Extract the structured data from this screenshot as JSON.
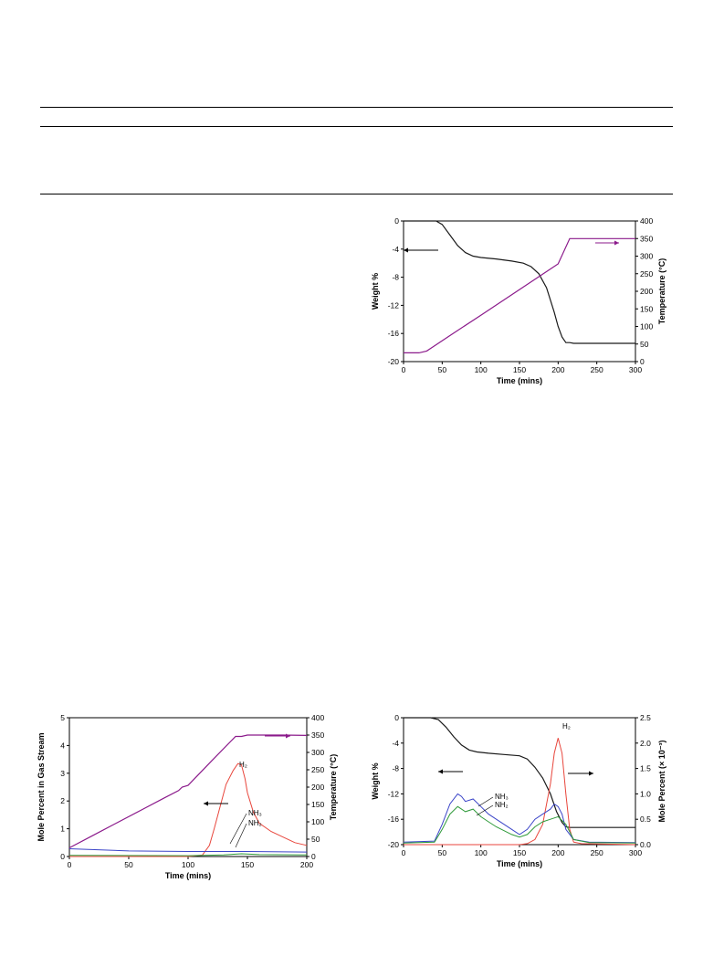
{
  "colors": {
    "weight": "#1a1a1a",
    "temperature": "#8b1a8b",
    "h2": "#e8463c",
    "nh3": "#3b45c8",
    "nh2": "#2f9a3a",
    "rule": "#000000"
  },
  "chart_data": [
    {
      "type": "line",
      "x_label": "Time (mins)",
      "y_label": "Weight %",
      "y2_label": "Temperature (°C)",
      "xlim": [
        0,
        300
      ],
      "ylim": [
        -20,
        0
      ],
      "y2lim": [
        0,
        400
      ],
      "x_ticks": [
        "0",
        "50",
        "100",
        "150",
        "200",
        "250",
        "300"
      ],
      "y_ticks": [
        "0",
        "-4",
        "-8",
        "-12",
        "-16",
        "-20"
      ],
      "y2_ticks": [
        "400",
        "350",
        "300",
        "250",
        "200",
        "150",
        "100",
        "50",
        "0"
      ],
      "series": [
        {
          "axis": "left",
          "color_key": "weight",
          "x": [
            0,
            30,
            42,
            50,
            60,
            70,
            80,
            90,
            100,
            120,
            140,
            155,
            165,
            175,
            185,
            195,
            200,
            205,
            210,
            215,
            220,
            300
          ],
          "y": [
            0,
            0,
            0,
            -0.5,
            -2.0,
            -3.5,
            -4.5,
            -5.0,
            -5.2,
            -5.4,
            -5.7,
            -6.0,
            -6.5,
            -7.5,
            -9.5,
            -13.0,
            -15.0,
            -16.5,
            -17.3,
            -17.3,
            -17.4,
            -17.4
          ]
        },
        {
          "axis": "right",
          "color_key": "temperature",
          "x": [
            0,
            20,
            30,
            40,
            60,
            100,
            150,
            200,
            215,
            220,
            300
          ],
          "y": [
            25,
            25,
            30,
            45,
            74,
            132,
            205,
            278,
            350,
            350,
            350
          ]
        }
      ]
    },
    {
      "type": "line",
      "x_label": "Time (mins)",
      "y_label": "Mole Percent in Gas Stream",
      "y2_label": "Temperature (°C)",
      "xlim": [
        0,
        200
      ],
      "ylim": [
        0,
        5
      ],
      "y2lim": [
        0,
        400
      ],
      "x_ticks": [
        "0",
        "50",
        "100",
        "150",
        "200"
      ],
      "y_ticks": [
        "5",
        "4",
        "3",
        "2",
        "1",
        "0"
      ],
      "y2_ticks": [
        "400",
        "350",
        "300",
        "250",
        "200",
        "150",
        "100",
        "50",
        "0"
      ],
      "annotations": {
        "h2": "H₂",
        "nh3": "NH₃",
        "nh2": "NH₂"
      },
      "series": [
        {
          "axis": "right",
          "color_key": "temperature",
          "x": [
            0,
            20,
            40,
            60,
            80,
            92,
            95,
            100,
            120,
            140,
            145,
            150,
            160,
            180,
            200
          ],
          "y": [
            25,
            61,
            97,
            133,
            169,
            190,
            200,
            205,
            276,
            346,
            346,
            350,
            350,
            350,
            349
          ]
        },
        {
          "axis": "left",
          "color_key": "h2",
          "x": [
            0,
            100,
            112,
            118,
            122,
            127,
            132,
            138,
            142,
            145,
            148,
            150,
            155,
            160,
            170,
            180,
            190,
            200
          ],
          "y": [
            0,
            0,
            0.05,
            0.4,
            1.0,
            1.8,
            2.6,
            3.1,
            3.35,
            3.3,
            2.8,
            2.3,
            1.6,
            1.2,
            0.9,
            0.7,
            0.5,
            0.4
          ]
        },
        {
          "axis": "left",
          "color_key": "nh3",
          "x": [
            0,
            50,
            100,
            150,
            200
          ],
          "y": [
            0.28,
            0.2,
            0.18,
            0.18,
            0.16
          ]
        },
        {
          "axis": "left",
          "color_key": "nh2",
          "x": [
            0,
            100,
            130,
            145,
            160,
            200
          ],
          "y": [
            0.04,
            0.03,
            0.06,
            0.1,
            0.07,
            0.06
          ]
        }
      ]
    },
    {
      "type": "line",
      "x_label": "Time (mins)",
      "y_label": "Weight %",
      "y2_label": "Mole Percent (× 10⁻³)",
      "xlim": [
        0,
        300
      ],
      "ylim": [
        -20,
        0
      ],
      "y2lim": [
        0,
        2.5
      ],
      "x_ticks": [
        "0",
        "50",
        "100",
        "150",
        "200",
        "250",
        "300"
      ],
      "y_ticks": [
        "0",
        "-4",
        "-8",
        "-12",
        "-16",
        "-20"
      ],
      "y2_ticks": [
        "2.5",
        "2.0",
        "1.5",
        "1.0",
        "0.5",
        "0.0"
      ],
      "annotations": {
        "h2": "H₂",
        "nh3": "NH₃",
        "nh2": "NH₂"
      },
      "series": [
        {
          "axis": "left",
          "color_key": "weight",
          "x": [
            0,
            35,
            45,
            55,
            65,
            75,
            85,
            95,
            110,
            130,
            150,
            160,
            170,
            180,
            190,
            198,
            205,
            210,
            215,
            220,
            300
          ],
          "y": [
            0,
            0,
            -0.3,
            -1.5,
            -3.0,
            -4.3,
            -5.1,
            -5.4,
            -5.6,
            -5.8,
            -6.0,
            -6.5,
            -7.8,
            -9.5,
            -12.0,
            -14.8,
            -16.5,
            -17.2,
            -17.3,
            -17.3,
            -17.3
          ]
        },
        {
          "axis": "right",
          "color_key": "h2",
          "x": [
            0,
            150,
            160,
            170,
            180,
            190,
            195,
            200,
            205,
            210,
            215,
            220,
            230,
            300
          ],
          "y": [
            0,
            0,
            0.02,
            0.1,
            0.4,
            1.2,
            1.8,
            2.1,
            1.8,
            1.0,
            0.3,
            0.05,
            0.02,
            0
          ]
        },
        {
          "axis": "right",
          "color_key": "nh3",
          "x": [
            0,
            40,
            50,
            60,
            70,
            75,
            80,
            90,
            100,
            110,
            120,
            140,
            150,
            160,
            170,
            180,
            190,
            195,
            200,
            205,
            210,
            220,
            240,
            300
          ],
          "y": [
            0.05,
            0.07,
            0.4,
            0.8,
            1.0,
            0.95,
            0.85,
            0.9,
            0.75,
            0.6,
            0.5,
            0.3,
            0.2,
            0.3,
            0.5,
            0.6,
            0.7,
            0.8,
            0.75,
            0.6,
            0.3,
            0.1,
            0.05,
            0.04
          ]
        },
        {
          "axis": "right",
          "color_key": "nh2",
          "x": [
            0,
            40,
            50,
            60,
            70,
            75,
            80,
            90,
            100,
            110,
            120,
            140,
            150,
            160,
            170,
            180,
            190,
            200,
            210,
            220,
            240,
            300
          ],
          "y": [
            0.03,
            0.05,
            0.3,
            0.6,
            0.75,
            0.7,
            0.65,
            0.7,
            0.55,
            0.45,
            0.35,
            0.2,
            0.15,
            0.2,
            0.35,
            0.45,
            0.5,
            0.55,
            0.4,
            0.1,
            0.04,
            0.03
          ]
        }
      ]
    }
  ]
}
